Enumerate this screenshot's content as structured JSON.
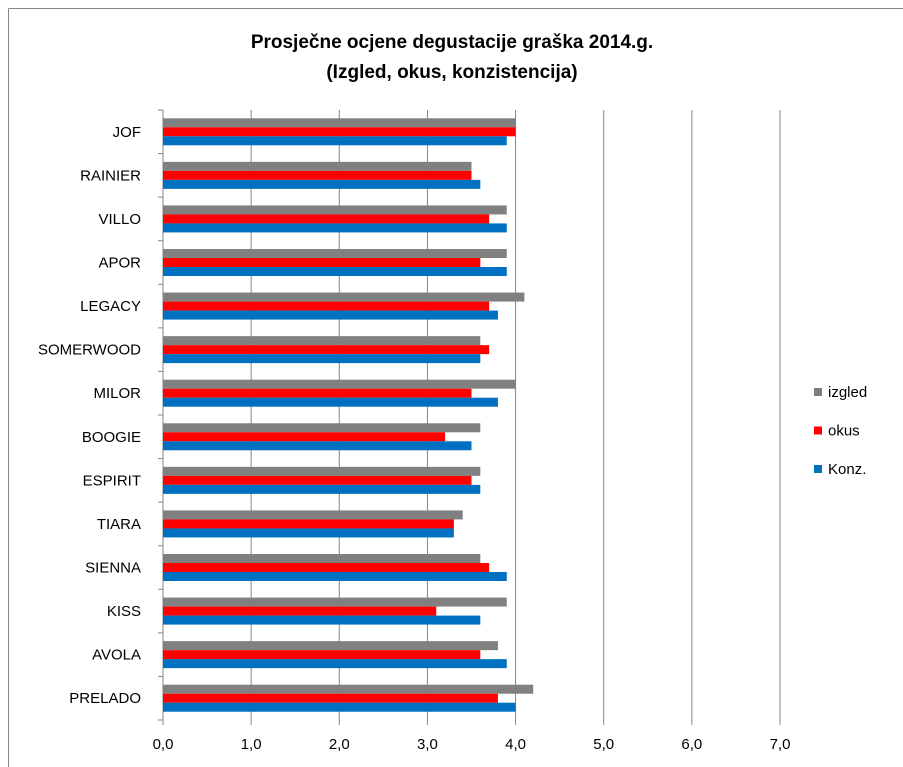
{
  "chart_data": {
    "type": "bar",
    "orientation": "horizontal",
    "title": "Prosječne ocjene degustacije graška 2014.g.",
    "subtitle": "(Izgled, okus, konzistencija)",
    "categories": [
      "JOF",
      "RAINIER",
      "VILLO",
      "APOR",
      "LEGACY",
      "SOMERWOOD",
      "MILOR",
      "BOOGIE",
      "ESPIRIT",
      "TIARA",
      "SIENNA",
      "KISS",
      "AVOLA",
      "PRELADO"
    ],
    "series": [
      {
        "name": "izgled",
        "color": "#808080",
        "values": [
          4.0,
          3.5,
          3.9,
          3.9,
          4.1,
          3.6,
          4.0,
          3.6,
          3.6,
          3.4,
          3.6,
          3.9,
          3.8,
          4.2
        ]
      },
      {
        "name": "okus",
        "color": "#ff0000",
        "values": [
          4.0,
          3.5,
          3.7,
          3.6,
          3.7,
          3.7,
          3.5,
          3.2,
          3.5,
          3.3,
          3.7,
          3.1,
          3.6,
          3.8
        ]
      },
      {
        "name": "Konz.",
        "color": "#0070c0",
        "values": [
          3.9,
          3.6,
          3.9,
          3.9,
          3.8,
          3.6,
          3.8,
          3.5,
          3.6,
          3.3,
          3.9,
          3.6,
          3.9,
          4.0
        ]
      }
    ],
    "xlim": [
      0,
      7
    ],
    "xticks": [
      {
        "value": 0,
        "label": "0,0"
      },
      {
        "value": 1,
        "label": "1,0"
      },
      {
        "value": 2,
        "label": "2,0"
      },
      {
        "value": 3,
        "label": "3,0"
      },
      {
        "value": 4,
        "label": "4,0"
      },
      {
        "value": 5,
        "label": "5,0"
      },
      {
        "value": 6,
        "label": "6,0"
      },
      {
        "value": 7,
        "label": "7,0"
      }
    ],
    "grid": true,
    "legend": "right"
  }
}
